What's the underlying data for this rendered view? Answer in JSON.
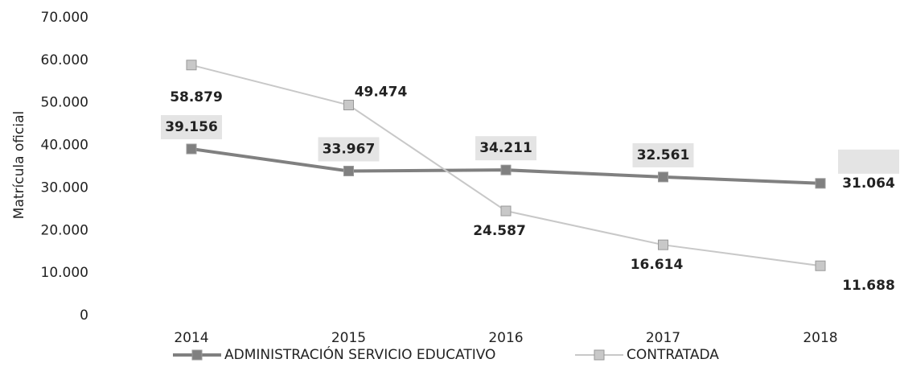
{
  "chart_data": {
    "type": "line",
    "y_label": "Matrícula oficial",
    "categories": [
      "2014",
      "2015",
      "2016",
      "2017",
      "2018"
    ],
    "series": [
      {
        "name": "ADMINISTRACIÓN SERVICIO EDUCATIVO",
        "color": "#808080",
        "values": [
          39156,
          33967,
          34211,
          32561,
          31064
        ],
        "value_labels": [
          "39.156",
          "33.967",
          "34.211",
          "32.561",
          "31.064"
        ]
      },
      {
        "name": "CONTRATADA",
        "color": "#c8c8c8",
        "values": [
          58879,
          49474,
          24587,
          16614,
          11688
        ],
        "value_labels": [
          "58.879",
          "49.474",
          "24.587",
          "16.614",
          "11.688"
        ]
      }
    ],
    "ylim": [
      0,
      70000
    ],
    "yticks": [
      0,
      {
        "value": 10000,
        "label": "10.000"
      },
      {
        "value": 20000,
        "label": "20.000"
      },
      {
        "value": 30000,
        "label": "30.000"
      },
      {
        "value": 40000,
        "label": "40.000"
      },
      {
        "value": 50000,
        "label": "50.000"
      },
      {
        "value": 60000,
        "label": "60.000"
      },
      {
        "value": 70000,
        "label": "70.000"
      }
    ],
    "legend": "bottom"
  }
}
